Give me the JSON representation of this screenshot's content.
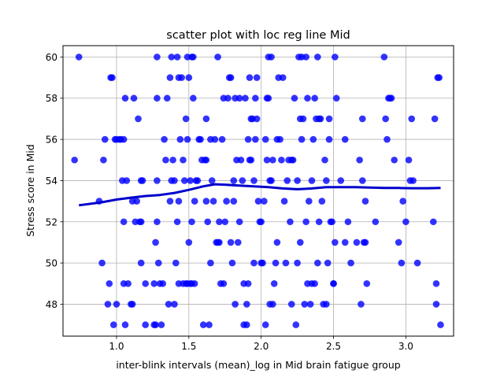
{
  "chart_data": {
    "type": "scatter",
    "title": "scatter plot with loc reg line Mid",
    "xlabel": "inter-blink intervals (mean)_log in Mid brain fatigue group",
    "ylabel": "Stress score in Mid",
    "xlim": [
      0.63,
      3.33
    ],
    "ylim": [
      46.45,
      60.55
    ],
    "xticks": [
      1.0,
      1.5,
      2.0,
      2.5,
      3.0
    ],
    "xtick_labels": [
      "1.0",
      "1.5",
      "2.0",
      "2.5",
      "3.0"
    ],
    "yticks": [
      48,
      50,
      52,
      54,
      56,
      58,
      60
    ],
    "ytick_labels": [
      "48",
      "50",
      "52",
      "54",
      "56",
      "58",
      "60"
    ],
    "grid": true,
    "colors": {
      "points": "#0000ff",
      "line": "#0000cc",
      "grid": "#b0b0b0"
    },
    "points": [
      [
        0.74,
        60
      ],
      [
        0.71,
        55
      ],
      [
        0.88,
        53
      ],
      [
        0.9,
        50
      ],
      [
        0.92,
        56
      ],
      [
        0.91,
        55
      ],
      [
        0.94,
        48
      ],
      [
        0.95,
        49
      ],
      [
        0.96,
        59
      ],
      [
        0.97,
        59
      ],
      [
        0.98,
        47
      ],
      [
        0.99,
        56
      ],
      [
        1.0,
        56
      ],
      [
        1.0,
        48
      ],
      [
        1.02,
        56
      ],
      [
        1.03,
        56
      ],
      [
        1.04,
        54
      ],
      [
        1.05,
        52
      ],
      [
        1.05,
        56
      ],
      [
        1.05,
        49
      ],
      [
        1.06,
        47
      ],
      [
        1.06,
        58
      ],
      [
        1.07,
        54
      ],
      [
        1.08,
        49
      ],
      [
        1.1,
        48
      ],
      [
        1.11,
        48
      ],
      [
        1.11,
        53
      ],
      [
        1.12,
        58
      ],
      [
        1.13,
        52
      ],
      [
        1.14,
        53
      ],
      [
        1.15,
        57
      ],
      [
        1.16,
        52
      ],
      [
        1.17,
        54
      ],
      [
        1.17,
        52
      ],
      [
        1.17,
        50
      ],
      [
        1.18,
        54
      ],
      [
        1.2,
        49
      ],
      [
        1.2,
        47
      ],
      [
        1.26,
        47
      ],
      [
        1.26,
        49
      ],
      [
        1.27,
        51
      ],
      [
        1.27,
        47
      ],
      [
        1.28,
        60
      ],
      [
        1.28,
        58
      ],
      [
        1.28,
        54
      ],
      [
        1.28,
        52
      ],
      [
        1.29,
        50
      ],
      [
        1.3,
        49
      ],
      [
        1.31,
        47
      ],
      [
        1.32,
        49
      ],
      [
        1.33,
        56
      ],
      [
        1.34,
        55
      ],
      [
        1.35,
        58
      ],
      [
        1.36,
        48
      ],
      [
        1.37,
        53
      ],
      [
        1.37,
        59
      ],
      [
        1.38,
        60
      ],
      [
        1.38,
        54
      ],
      [
        1.39,
        55
      ],
      [
        1.4,
        54
      ],
      [
        1.4,
        48
      ],
      [
        1.41,
        50
      ],
      [
        1.42,
        52
      ],
      [
        1.42,
        60
      ],
      [
        1.43,
        53
      ],
      [
        1.43,
        49
      ],
      [
        1.43,
        59
      ],
      [
        1.44,
        56
      ],
      [
        1.45,
        59
      ],
      [
        1.46,
        55
      ],
      [
        1.46,
        49
      ],
      [
        1.47,
        54
      ],
      [
        1.48,
        57
      ],
      [
        1.48,
        49
      ],
      [
        1.49,
        60
      ],
      [
        1.49,
        56
      ],
      [
        1.49,
        49
      ],
      [
        1.5,
        51
      ],
      [
        1.5,
        59
      ],
      [
        1.51,
        49
      ],
      [
        1.51,
        54
      ],
      [
        1.52,
        60
      ],
      [
        1.52,
        52
      ],
      [
        1.52,
        49
      ],
      [
        1.53,
        60
      ],
      [
        1.53,
        58
      ],
      [
        1.54,
        53
      ],
      [
        1.54,
        49
      ],
      [
        1.55,
        54
      ],
      [
        1.56,
        54
      ],
      [
        1.57,
        56
      ],
      [
        1.58,
        56
      ],
      [
        1.59,
        55
      ],
      [
        1.6,
        47
      ],
      [
        1.61,
        55
      ],
      [
        1.62,
        57
      ],
      [
        1.62,
        53
      ],
      [
        1.62,
        55
      ],
      [
        1.63,
        52
      ],
      [
        1.64,
        47
      ],
      [
        1.65,
        50
      ],
      [
        1.65,
        56
      ],
      [
        1.66,
        54
      ],
      [
        1.67,
        53
      ],
      [
        1.68,
        56
      ],
      [
        1.69,
        51
      ],
      [
        1.7,
        51
      ],
      [
        1.7,
        60
      ],
      [
        1.71,
        51
      ],
      [
        1.71,
        52
      ],
      [
        1.72,
        49
      ],
      [
        1.73,
        56
      ],
      [
        1.74,
        49
      ],
      [
        1.74,
        58
      ],
      [
        1.75,
        52
      ],
      [
        1.76,
        53
      ],
      [
        1.77,
        58
      ],
      [
        1.78,
        59
      ],
      [
        1.79,
        59
      ],
      [
        1.79,
        51
      ],
      [
        1.8,
        50
      ],
      [
        1.81,
        53
      ],
      [
        1.81,
        54
      ],
      [
        1.82,
        58
      ],
      [
        1.82,
        48
      ],
      [
        1.83,
        55
      ],
      [
        1.84,
        51
      ],
      [
        1.85,
        52
      ],
      [
        1.85,
        58
      ],
      [
        1.86,
        55
      ],
      [
        1.87,
        54
      ],
      [
        1.88,
        47
      ],
      [
        1.88,
        49
      ],
      [
        1.89,
        58
      ],
      [
        1.9,
        47
      ],
      [
        1.9,
        48
      ],
      [
        1.91,
        49
      ],
      [
        1.91,
        56
      ],
      [
        1.92,
        59
      ],
      [
        1.92,
        55
      ],
      [
        1.93,
        57
      ],
      [
        1.93,
        55
      ],
      [
        1.94,
        57
      ],
      [
        1.95,
        54
      ],
      [
        1.95,
        50
      ],
      [
        1.96,
        56
      ],
      [
        1.96,
        58
      ],
      [
        1.97,
        57
      ],
      [
        1.97,
        59
      ],
      [
        1.98,
        53
      ],
      [
        1.99,
        52
      ],
      [
        2.0,
        50
      ],
      [
        2.0,
        52
      ],
      [
        2.01,
        50
      ],
      [
        2.02,
        53
      ],
      [
        2.03,
        47
      ],
      [
        2.03,
        56
      ],
      [
        2.04,
        58
      ],
      [
        2.04,
        55
      ],
      [
        2.05,
        60
      ],
      [
        2.05,
        58
      ],
      [
        2.06,
        48
      ],
      [
        2.06,
        54
      ],
      [
        2.07,
        60
      ],
      [
        2.07,
        54
      ],
      [
        2.08,
        48
      ],
      [
        2.08,
        55
      ],
      [
        2.09,
        49
      ],
      [
        2.1,
        50
      ],
      [
        2.11,
        51
      ],
      [
        2.11,
        56
      ],
      [
        2.12,
        59
      ],
      [
        2.13,
        56
      ],
      [
        2.14,
        55
      ],
      [
        2.15,
        59
      ],
      [
        2.16,
        53
      ],
      [
        2.17,
        50
      ],
      [
        2.18,
        54
      ],
      [
        2.19,
        55
      ],
      [
        2.2,
        52
      ],
      [
        2.21,
        55
      ],
      [
        2.21,
        48
      ],
      [
        2.22,
        55
      ],
      [
        2.23,
        58
      ],
      [
        2.24,
        47
      ],
      [
        2.25,
        50
      ],
      [
        2.25,
        54
      ],
      [
        2.26,
        60
      ],
      [
        2.27,
        51
      ],
      [
        2.27,
        57
      ],
      [
        2.28,
        56
      ],
      [
        2.28,
        60
      ],
      [
        2.29,
        57
      ],
      [
        2.3,
        48
      ],
      [
        2.31,
        52
      ],
      [
        2.31,
        60
      ],
      [
        2.32,
        49
      ],
      [
        2.32,
        58
      ],
      [
        2.33,
        53
      ],
      [
        2.34,
        48
      ],
      [
        2.35,
        54
      ],
      [
        2.35,
        49
      ],
      [
        2.36,
        56
      ],
      [
        2.37,
        49
      ],
      [
        2.37,
        58
      ],
      [
        2.38,
        57
      ],
      [
        2.39,
        60
      ],
      [
        2.39,
        50
      ],
      [
        2.4,
        52
      ],
      [
        2.4,
        57
      ],
      [
        2.41,
        57
      ],
      [
        2.42,
        53
      ],
      [
        2.43,
        48
      ],
      [
        2.44,
        55
      ],
      [
        2.45,
        48
      ],
      [
        2.45,
        54
      ],
      [
        2.46,
        50
      ],
      [
        2.47,
        57
      ],
      [
        2.47,
        56
      ],
      [
        2.48,
        52
      ],
      [
        2.49,
        52
      ],
      [
        2.5,
        49
      ],
      [
        2.5,
        49
      ],
      [
        2.51,
        51
      ],
      [
        2.51,
        60
      ],
      [
        2.52,
        58
      ],
      [
        2.55,
        54
      ],
      [
        2.58,
        56
      ],
      [
        2.58,
        51
      ],
      [
        2.6,
        52
      ],
      [
        2.62,
        50
      ],
      [
        2.66,
        51
      ],
      [
        2.68,
        55
      ],
      [
        2.69,
        48
      ],
      [
        2.7,
        57
      ],
      [
        2.7,
        54
      ],
      [
        2.71,
        51
      ],
      [
        2.72,
        51
      ],
      [
        2.72,
        53
      ],
      [
        2.73,
        49
      ],
      [
        2.79,
        52
      ],
      [
        2.85,
        60
      ],
      [
        2.86,
        57
      ],
      [
        2.87,
        56
      ],
      [
        2.88,
        58
      ],
      [
        2.89,
        58
      ],
      [
        2.9,
        58
      ],
      [
        2.92,
        55
      ],
      [
        2.95,
        51
      ],
      [
        2.97,
        50
      ],
      [
        2.98,
        53
      ],
      [
        3.0,
        52
      ],
      [
        3.02,
        55
      ],
      [
        3.03,
        54
      ],
      [
        3.04,
        57
      ],
      [
        3.05,
        54
      ],
      [
        3.08,
        50
      ],
      [
        3.19,
        52
      ],
      [
        3.2,
        57
      ],
      [
        3.21,
        49
      ],
      [
        3.21,
        48
      ],
      [
        3.22,
        59
      ],
      [
        3.23,
        59
      ],
      [
        3.24,
        47
      ]
    ],
    "lowess_line": [
      [
        0.74,
        52.8
      ],
      [
        0.9,
        52.95
      ],
      [
        1.0,
        53.08
      ],
      [
        1.1,
        53.17
      ],
      [
        1.2,
        53.25
      ],
      [
        1.3,
        53.3
      ],
      [
        1.4,
        53.4
      ],
      [
        1.5,
        53.55
      ],
      [
        1.6,
        53.72
      ],
      [
        1.68,
        53.82
      ],
      [
        1.75,
        53.8
      ],
      [
        1.85,
        53.76
      ],
      [
        1.95,
        53.72
      ],
      [
        2.05,
        53.68
      ],
      [
        2.15,
        53.62
      ],
      [
        2.25,
        53.58
      ],
      [
        2.35,
        53.62
      ],
      [
        2.45,
        53.68
      ],
      [
        2.55,
        53.68
      ],
      [
        2.65,
        53.68
      ],
      [
        2.75,
        53.66
      ],
      [
        2.85,
        53.64
      ],
      [
        2.95,
        53.64
      ],
      [
        3.05,
        53.63
      ],
      [
        3.15,
        53.63
      ],
      [
        3.24,
        53.64
      ]
    ]
  }
}
